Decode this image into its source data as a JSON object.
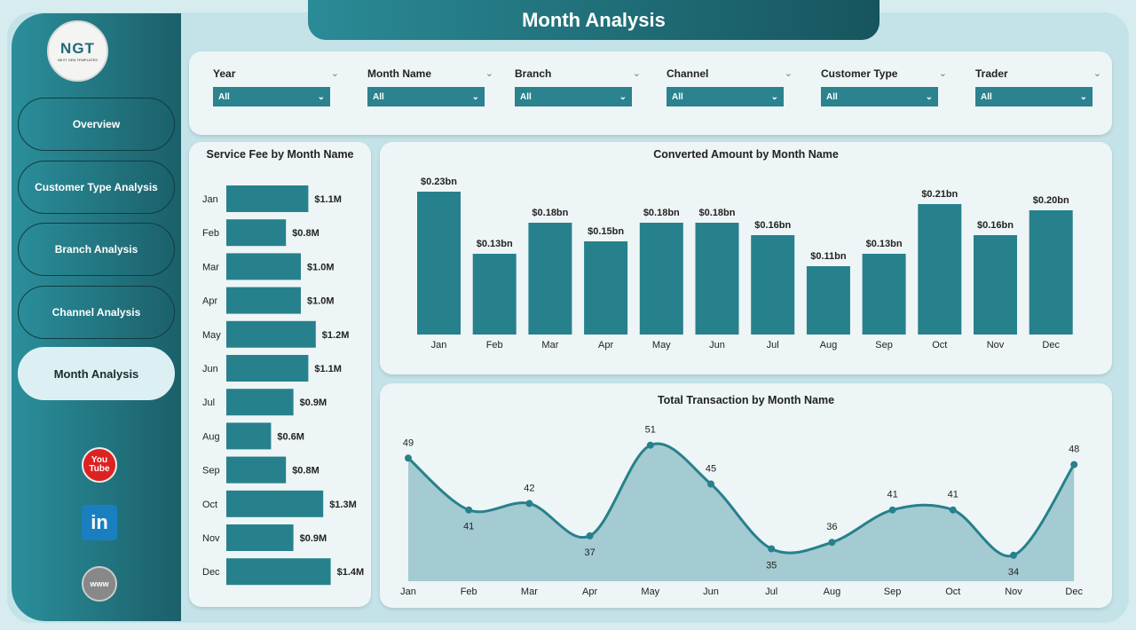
{
  "title": "Month Analysis",
  "logo": {
    "text": "NGT",
    "subtitle": "NEXT GEN TEMPLATES"
  },
  "nav": [
    {
      "label": "Overview"
    },
    {
      "label": "Customer Type Analysis"
    },
    {
      "label": "Branch Analysis"
    },
    {
      "label": "Channel Analysis"
    },
    {
      "label": "Month Analysis",
      "active": true
    }
  ],
  "social": [
    {
      "icon": "youtube-icon",
      "label": "You Tube"
    },
    {
      "icon": "linkedin-icon",
      "label": "in"
    },
    {
      "icon": "globe-icon",
      "label": "www"
    }
  ],
  "filters": [
    {
      "label": "Year",
      "value": "All"
    },
    {
      "label": "Month Name",
      "value": "All"
    },
    {
      "label": "Branch",
      "value": "All"
    },
    {
      "label": "Channel",
      "value": "All"
    },
    {
      "label": "Customer Type",
      "value": "All"
    },
    {
      "label": "Trader",
      "value": "All"
    }
  ],
  "colors": {
    "accent": "#26818c",
    "area": "#a3cbd1",
    "sidebar": "#1f6f7a"
  },
  "chart_data": [
    {
      "type": "bar",
      "orientation": "horizontal",
      "title": "Service Fee by Month Name",
      "categories": [
        "Jan",
        "Feb",
        "Mar",
        "Apr",
        "May",
        "Jun",
        "Jul",
        "Aug",
        "Sep",
        "Oct",
        "Nov",
        "Dec"
      ],
      "values": [
        1.1,
        0.8,
        1.0,
        1.0,
        1.2,
        1.1,
        0.9,
        0.6,
        0.8,
        1.3,
        0.9,
        1.4
      ],
      "labels": [
        "$1.1M",
        "$0.8M",
        "$1.0M",
        "$1.0M",
        "$1.2M",
        "$1.1M",
        "$0.9M",
        "$0.6M",
        "$0.8M",
        "$1.3M",
        "$0.9M",
        "$1.4M"
      ],
      "unit": "M"
    },
    {
      "type": "bar",
      "title": "Converted Amount by Month Name",
      "categories": [
        "Jan",
        "Feb",
        "Mar",
        "Apr",
        "May",
        "Jun",
        "Jul",
        "Aug",
        "Sep",
        "Oct",
        "Nov",
        "Dec"
      ],
      "values": [
        0.23,
        0.13,
        0.18,
        0.15,
        0.18,
        0.18,
        0.16,
        0.11,
        0.13,
        0.21,
        0.16,
        0.2
      ],
      "labels": [
        "$0.23bn",
        "$0.13bn",
        "$0.18bn",
        "$0.15bn",
        "$0.18bn",
        "$0.18bn",
        "$0.16bn",
        "$0.11bn",
        "$0.13bn",
        "$0.21bn",
        "$0.16bn",
        "$0.20bn"
      ],
      "unit": "bn"
    },
    {
      "type": "area",
      "title": "Total Transaction by Month Name",
      "categories": [
        "Jan",
        "Feb",
        "Mar",
        "Apr",
        "May",
        "Jun",
        "Jul",
        "Aug",
        "Sep",
        "Oct",
        "Nov",
        "Dec"
      ],
      "values": [
        49,
        41,
        42,
        37,
        51,
        45,
        35,
        36,
        41,
        41,
        34,
        48
      ],
      "ylim": [
        30,
        51
      ]
    }
  ]
}
